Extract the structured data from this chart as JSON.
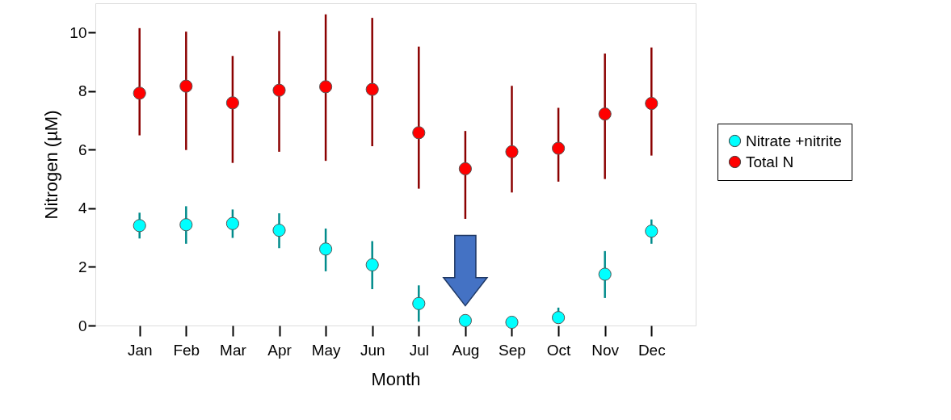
{
  "chart_data": {
    "type": "scatter",
    "xlabel": "Month",
    "ylabel": "Nitrogen (µM)",
    "categories": [
      "Jan",
      "Feb",
      "Mar",
      "Apr",
      "May",
      "Jun",
      "Jul",
      "Aug",
      "Sep",
      "Oct",
      "Nov",
      "Dec"
    ],
    "series": [
      {
        "name": "Nitrate +nitrite",
        "color": "#00ffff",
        "values": [
          3.41,
          3.44,
          3.48,
          3.25,
          2.61,
          2.07,
          0.75,
          0.17,
          0.11,
          0.27,
          1.75,
          3.22
        ],
        "errors": [
          [
            2.97,
            3.85
          ],
          [
            2.79,
            4.07
          ],
          [
            2.99,
            3.96
          ],
          [
            2.64,
            3.83
          ],
          [
            1.85,
            3.31
          ],
          [
            1.24,
            2.88
          ],
          [
            0.13,
            1.37
          ],
          null,
          null,
          [
            0.15,
            0.61
          ],
          [
            0.94,
            2.54
          ],
          [
            2.79,
            3.62
          ]
        ]
      },
      {
        "name": "Total N",
        "color": "#ff0000",
        "values": [
          7.93,
          8.17,
          7.6,
          8.03,
          8.15,
          8.06,
          6.58,
          5.35,
          5.93,
          6.05,
          7.22,
          7.58
        ],
        "errors": [
          [
            6.49,
            10.15
          ],
          [
            5.99,
            10.03
          ],
          [
            5.55,
            9.2
          ],
          [
            5.93,
            10.05
          ],
          [
            5.62,
            10.62
          ],
          [
            6.12,
            10.5
          ],
          [
            4.67,
            9.52
          ],
          [
            3.64,
            6.64
          ],
          [
            4.54,
            8.18
          ],
          [
            4.91,
            7.43
          ],
          [
            5.0,
            9.28
          ],
          [
            5.8,
            9.49
          ]
        ]
      }
    ],
    "ylim": [
      0,
      11
    ],
    "yticks": [
      0,
      2,
      4,
      6,
      8,
      10
    ],
    "marker": "circle",
    "legend": "right",
    "grid": false
  }
}
